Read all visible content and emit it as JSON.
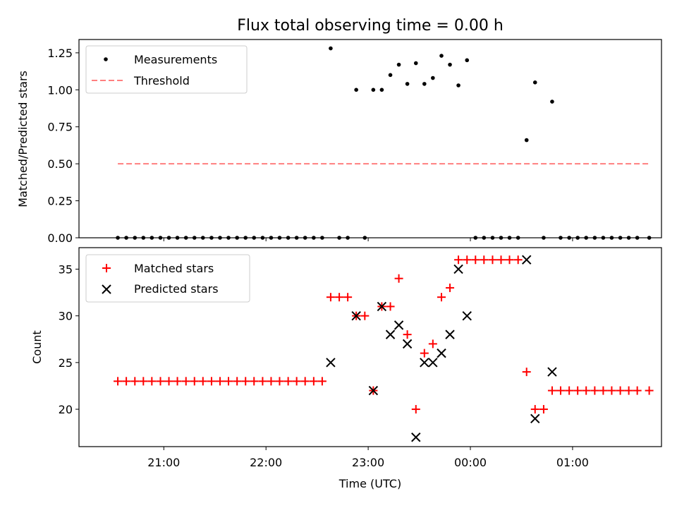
{
  "chart_data": [
    {
      "type": "scatter",
      "title": "Flux total observing time = 0.00 h",
      "ylabel": "Matched/Predicted stars",
      "xlabel": "",
      "ylim": [
        0,
        1.34
      ],
      "yticks": [
        0.0,
        0.25,
        0.5,
        0.75,
        1.0,
        1.25
      ],
      "ytick_labels": [
        "0.00",
        "0.25",
        "0.50",
        "0.75",
        "1.00",
        "1.25"
      ],
      "legend": {
        "position": "top-left",
        "entries": [
          "Measurements",
          "Threshold"
        ]
      },
      "threshold": {
        "name": "Threshold",
        "y": 0.5,
        "x_start": 20.55,
        "x_end": 25.75,
        "color": "#ff7f7f"
      },
      "series": [
        {
          "name": "Measurements",
          "color": "#000000",
          "points": [
            [
              20.55,
              0
            ],
            [
              20.633,
              0
            ],
            [
              20.717,
              0
            ],
            [
              20.8,
              0
            ],
            [
              20.883,
              0
            ],
            [
              20.967,
              0
            ],
            [
              21.05,
              0
            ],
            [
              21.133,
              0
            ],
            [
              21.217,
              0
            ],
            [
              21.3,
              0
            ],
            [
              21.383,
              0
            ],
            [
              21.467,
              0
            ],
            [
              21.55,
              0
            ],
            [
              21.633,
              0
            ],
            [
              21.717,
              0
            ],
            [
              21.8,
              0
            ],
            [
              21.883,
              0
            ],
            [
              21.967,
              0
            ],
            [
              22.05,
              0
            ],
            [
              22.133,
              0
            ],
            [
              22.217,
              0
            ],
            [
              22.3,
              0
            ],
            [
              22.383,
              0
            ],
            [
              22.467,
              0
            ],
            [
              22.55,
              0
            ],
            [
              22.633,
              1.28
            ],
            [
              22.717,
              0
            ],
            [
              22.8,
              0
            ],
            [
              22.883,
              1.0
            ],
            [
              22.967,
              0
            ],
            [
              23.05,
              1.0
            ],
            [
              23.133,
              1.0
            ],
            [
              23.217,
              1.1
            ],
            [
              23.3,
              1.17
            ],
            [
              23.383,
              1.04
            ],
            [
              23.467,
              1.18
            ],
            [
              23.55,
              1.04
            ],
            [
              23.633,
              1.08
            ],
            [
              23.717,
              1.23
            ],
            [
              23.8,
              1.17
            ],
            [
              23.883,
              1.03
            ],
            [
              23.967,
              1.2
            ],
            [
              24.05,
              0
            ],
            [
              24.133,
              0
            ],
            [
              24.217,
              0
            ],
            [
              24.3,
              0
            ],
            [
              24.383,
              0
            ],
            [
              24.467,
              0
            ],
            [
              24.55,
              0.66
            ],
            [
              24.633,
              1.05
            ],
            [
              24.717,
              0
            ],
            [
              24.8,
              0.92
            ],
            [
              24.883,
              0
            ],
            [
              24.967,
              0
            ],
            [
              25.05,
              0
            ],
            [
              25.133,
              0
            ],
            [
              25.217,
              0
            ],
            [
              25.3,
              0
            ],
            [
              25.383,
              0
            ],
            [
              25.467,
              0
            ],
            [
              25.55,
              0
            ],
            [
              25.633,
              0
            ],
            [
              25.75,
              0
            ]
          ]
        }
      ]
    },
    {
      "type": "scatter",
      "title": "",
      "xlabel": "Time (UTC)",
      "ylabel": "Count",
      "xlim": [
        20.17,
        25.87
      ],
      "ylim": [
        16,
        37.3
      ],
      "yticks": [
        20,
        25,
        30,
        35
      ],
      "ytick_labels": [
        "20",
        "25",
        "30",
        "35"
      ],
      "xticks": [
        21,
        22,
        23,
        24,
        25
      ],
      "xtick_labels": [
        "21:00",
        "22:00",
        "23:00",
        "00:00",
        "01:00"
      ],
      "legend": {
        "position": "top-left",
        "entries": [
          "Matched stars",
          "Predicted stars"
        ]
      },
      "series": [
        {
          "name": "Matched stars",
          "marker": "plus",
          "color": "#ff0000",
          "points": [
            [
              20.55,
              23
            ],
            [
              20.633,
              23
            ],
            [
              20.717,
              23
            ],
            [
              20.8,
              23
            ],
            [
              20.883,
              23
            ],
            [
              20.967,
              23
            ],
            [
              21.05,
              23
            ],
            [
              21.133,
              23
            ],
            [
              21.217,
              23
            ],
            [
              21.3,
              23
            ],
            [
              21.383,
              23
            ],
            [
              21.467,
              23
            ],
            [
              21.55,
              23
            ],
            [
              21.633,
              23
            ],
            [
              21.717,
              23
            ],
            [
              21.8,
              23
            ],
            [
              21.883,
              23
            ],
            [
              21.967,
              23
            ],
            [
              22.05,
              23
            ],
            [
              22.133,
              23
            ],
            [
              22.217,
              23
            ],
            [
              22.3,
              23
            ],
            [
              22.383,
              23
            ],
            [
              22.467,
              23
            ],
            [
              22.55,
              23
            ],
            [
              22.633,
              32
            ],
            [
              22.717,
              32
            ],
            [
              22.8,
              32
            ],
            [
              22.883,
              30
            ],
            [
              22.967,
              30
            ],
            [
              23.05,
              22
            ],
            [
              23.133,
              31
            ],
            [
              23.217,
              31
            ],
            [
              23.3,
              34
            ],
            [
              23.383,
              28
            ],
            [
              23.467,
              20
            ],
            [
              23.55,
              26
            ],
            [
              23.633,
              27
            ],
            [
              23.717,
              32
            ],
            [
              23.8,
              33
            ],
            [
              23.883,
              36
            ],
            [
              23.967,
              36
            ],
            [
              24.05,
              36
            ],
            [
              24.133,
              36
            ],
            [
              24.217,
              36
            ],
            [
              24.3,
              36
            ],
            [
              24.383,
              36
            ],
            [
              24.467,
              36
            ],
            [
              24.55,
              24
            ],
            [
              24.633,
              20
            ],
            [
              24.717,
              20
            ],
            [
              24.8,
              22
            ],
            [
              24.883,
              22
            ],
            [
              24.967,
              22
            ],
            [
              25.05,
              22
            ],
            [
              25.133,
              22
            ],
            [
              25.217,
              22
            ],
            [
              25.3,
              22
            ],
            [
              25.383,
              22
            ],
            [
              25.467,
              22
            ],
            [
              25.55,
              22
            ],
            [
              25.633,
              22
            ],
            [
              25.75,
              22
            ]
          ]
        },
        {
          "name": "Predicted stars",
          "marker": "x",
          "color": "#000000",
          "points": [
            [
              22.633,
              25
            ],
            [
              22.883,
              30
            ],
            [
              23.05,
              22
            ],
            [
              23.133,
              31
            ],
            [
              23.217,
              28
            ],
            [
              23.3,
              29
            ],
            [
              23.383,
              27
            ],
            [
              23.467,
              17
            ],
            [
              23.55,
              25
            ],
            [
              23.633,
              25
            ],
            [
              23.717,
              26
            ],
            [
              23.8,
              28
            ],
            [
              23.883,
              35
            ],
            [
              23.967,
              30
            ],
            [
              24.55,
              36
            ],
            [
              24.633,
              19
            ],
            [
              24.8,
              24
            ]
          ]
        }
      ]
    }
  ]
}
